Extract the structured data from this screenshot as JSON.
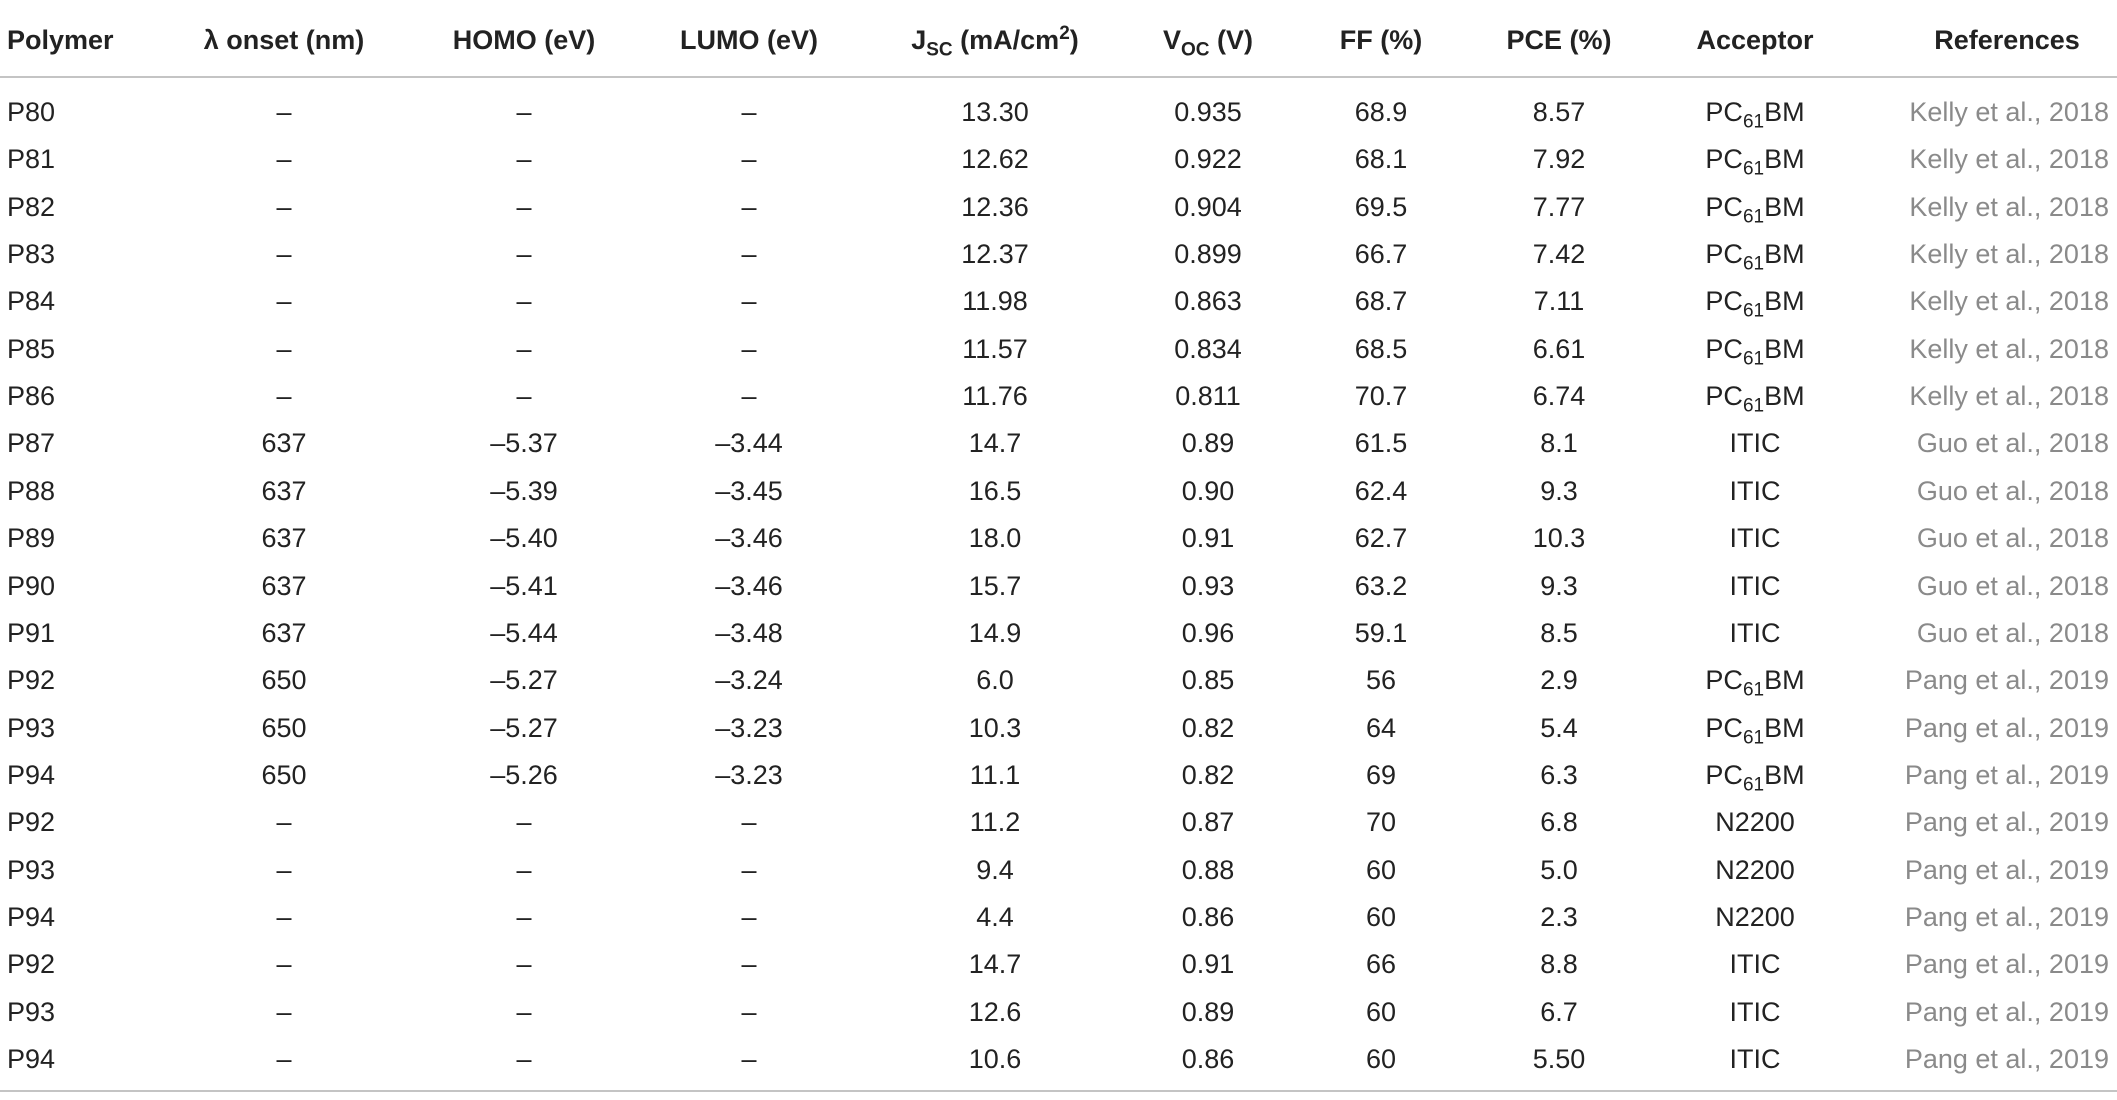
{
  "table": {
    "header": [
      "Polymer",
      "λ onset (nm)",
      "HOMO (eV)",
      "LUMO (eV)",
      [
        {
          "text": "J"
        },
        {
          "sub": "SC"
        },
        {
          "text": " (mA/cm"
        },
        {
          "sup": "2"
        },
        {
          "text": ")"
        }
      ],
      [
        {
          "text": "V"
        },
        {
          "sub": "OC"
        },
        {
          "text": " (V)"
        }
      ],
      "FF (%)",
      "PCE (%)",
      "Acceptor",
      "References"
    ],
    "rows": [
      [
        "P80",
        "–",
        "–",
        "–",
        "13.30",
        "0.935",
        "68.9",
        "8.57",
        [
          {
            "text": "PC"
          },
          {
            "sub": "61"
          },
          {
            "text": "BM"
          }
        ],
        "Kelly et al., 2018"
      ],
      [
        "P81",
        "–",
        "–",
        "–",
        "12.62",
        "0.922",
        "68.1",
        "7.92",
        [
          {
            "text": "PC"
          },
          {
            "sub": "61"
          },
          {
            "text": "BM"
          }
        ],
        "Kelly et al., 2018"
      ],
      [
        "P82",
        "–",
        "–",
        "–",
        "12.36",
        "0.904",
        "69.5",
        "7.77",
        [
          {
            "text": "PC"
          },
          {
            "sub": "61"
          },
          {
            "text": "BM"
          }
        ],
        "Kelly et al., 2018"
      ],
      [
        "P83",
        "–",
        "–",
        "–",
        "12.37",
        "0.899",
        "66.7",
        "7.42",
        [
          {
            "text": "PC"
          },
          {
            "sub": "61"
          },
          {
            "text": "BM"
          }
        ],
        "Kelly et al., 2018"
      ],
      [
        "P84",
        "–",
        "–",
        "–",
        "11.98",
        "0.863",
        "68.7",
        "7.11",
        [
          {
            "text": "PC"
          },
          {
            "sub": "61"
          },
          {
            "text": "BM"
          }
        ],
        "Kelly et al., 2018"
      ],
      [
        "P85",
        "–",
        "–",
        "–",
        "11.57",
        "0.834",
        "68.5",
        "6.61",
        [
          {
            "text": "PC"
          },
          {
            "sub": "61"
          },
          {
            "text": "BM"
          }
        ],
        "Kelly et al., 2018"
      ],
      [
        "P86",
        "–",
        "–",
        "–",
        "11.76",
        "0.811",
        "70.7",
        "6.74",
        [
          {
            "text": "PC"
          },
          {
            "sub": "61"
          },
          {
            "text": "BM"
          }
        ],
        "Kelly et al., 2018"
      ],
      [
        "P87",
        "637",
        "–5.37",
        "–3.44",
        "14.7",
        "0.89",
        "61.5",
        "8.1",
        "ITIC",
        "Guo et al., 2018"
      ],
      [
        "P88",
        "637",
        "–5.39",
        "–3.45",
        "16.5",
        "0.90",
        "62.4",
        "9.3",
        "ITIC",
        "Guo et al., 2018"
      ],
      [
        "P89",
        "637",
        "–5.40",
        "–3.46",
        "18.0",
        "0.91",
        "62.7",
        "10.3",
        "ITIC",
        "Guo et al., 2018"
      ],
      [
        "P90",
        "637",
        "–5.41",
        "–3.46",
        "15.7",
        "0.93",
        "63.2",
        "9.3",
        "ITIC",
        "Guo et al., 2018"
      ],
      [
        "P91",
        "637",
        "–5.44",
        "–3.48",
        "14.9",
        "0.96",
        "59.1",
        "8.5",
        "ITIC",
        "Guo et al., 2018"
      ],
      [
        "P92",
        "650",
        "–5.27",
        "–3.24",
        "6.0",
        "0.85",
        "56",
        "2.9",
        [
          {
            "text": "PC"
          },
          {
            "sub": "61"
          },
          {
            "text": "BM"
          }
        ],
        "Pang et al., 2019"
      ],
      [
        "P93",
        "650",
        "–5.27",
        "–3.23",
        "10.3",
        "0.82",
        "64",
        "5.4",
        [
          {
            "text": "PC"
          },
          {
            "sub": "61"
          },
          {
            "text": "BM"
          }
        ],
        "Pang et al., 2019"
      ],
      [
        "P94",
        "650",
        "–5.26",
        "–3.23",
        "11.1",
        "0.82",
        "69",
        "6.3",
        [
          {
            "text": "PC"
          },
          {
            "sub": "61"
          },
          {
            "text": "BM"
          }
        ],
        "Pang et al., 2019"
      ],
      [
        "P92",
        "–",
        "–",
        "–",
        "11.2",
        "0.87",
        "70",
        "6.8",
        "N2200",
        "Pang et al., 2019"
      ],
      [
        "P93",
        "–",
        "–",
        "–",
        "9.4",
        "0.88",
        "60",
        "5.0",
        "N2200",
        "Pang et al., 2019"
      ],
      [
        "P94",
        "–",
        "–",
        "–",
        "4.4",
        "0.86",
        "60",
        "2.3",
        "N2200",
        "Pang et al., 2019"
      ],
      [
        "P92",
        "–",
        "–",
        "–",
        "14.7",
        "0.91",
        "66",
        "8.8",
        "ITIC",
        "Pang et al., 2019"
      ],
      [
        "P93",
        "–",
        "–",
        "–",
        "12.6",
        "0.89",
        "60",
        "6.7",
        "ITIC",
        "Pang et al., 2019"
      ],
      [
        "P94",
        "–",
        "–",
        "–",
        "10.6",
        "0.86",
        "60",
        "5.50",
        "ITIC",
        "Pang et al., 2019"
      ]
    ]
  }
}
